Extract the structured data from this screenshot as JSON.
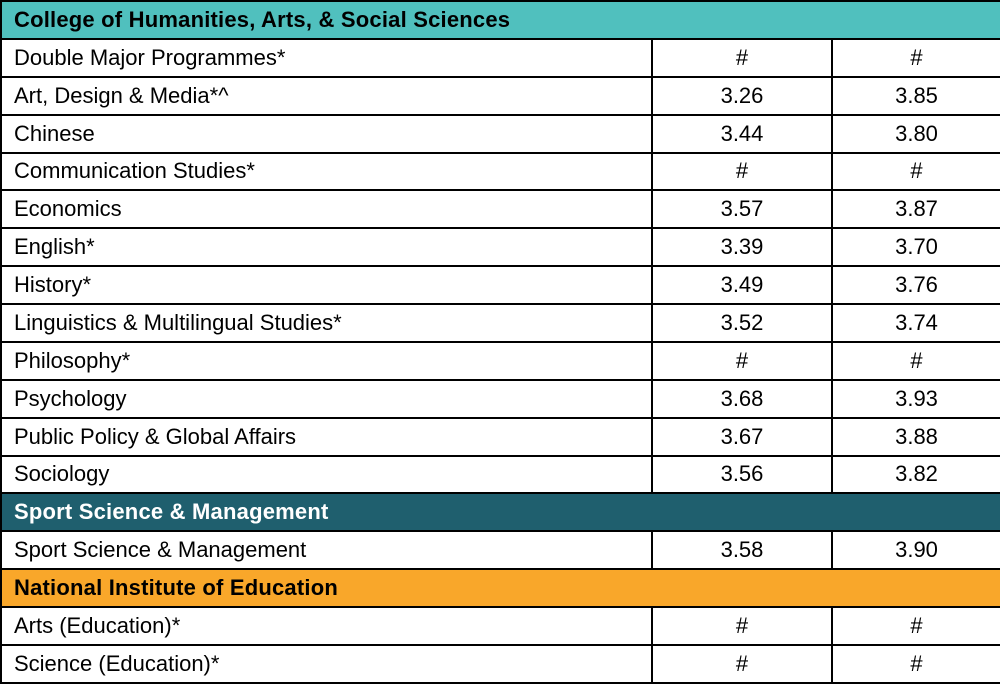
{
  "colors": {
    "teal": "#50C0BE",
    "darkteal": "#1F5F6E",
    "orange": "#F9A72A"
  },
  "table": {
    "sections": [
      {
        "title": "College of Humanities, Arts, & Social Sciences",
        "rows": [
          {
            "name": "Double Major Programmes*",
            "v1": "#",
            "v2": "#"
          },
          {
            "name": "Art, Design & Media*^",
            "v1": "3.26",
            "v2": "3.85"
          },
          {
            "name": "Chinese",
            "v1": "3.44",
            "v2": "3.80"
          },
          {
            "name": "Communication Studies*",
            "v1": "#",
            "v2": "#"
          },
          {
            "name": "Economics",
            "v1": "3.57",
            "v2": "3.87"
          },
          {
            "name": "English*",
            "v1": "3.39",
            "v2": "3.70"
          },
          {
            "name": "History*",
            "v1": "3.49",
            "v2": "3.76"
          },
          {
            "name": "Linguistics & Multilingual Studies*",
            "v1": "3.52",
            "v2": "3.74"
          },
          {
            "name": "Philosophy*",
            "v1": "#",
            "v2": "#"
          },
          {
            "name": "Psychology",
            "v1": "3.68",
            "v2": "3.93"
          },
          {
            "name": "Public Policy & Global Affairs",
            "v1": "3.67",
            "v2": "3.88"
          },
          {
            "name": "Sociology",
            "v1": "3.56",
            "v2": "3.82"
          }
        ]
      },
      {
        "title": "Sport Science & Management",
        "rows": [
          {
            "name": "Sport Science & Management",
            "v1": "3.58",
            "v2": "3.90"
          }
        ]
      },
      {
        "title": "National Institute of Education",
        "rows": [
          {
            "name": "Arts (Education)*",
            "v1": "#",
            "v2": "#"
          },
          {
            "name": "Science (Education)*",
            "v1": "#",
            "v2": "#"
          }
        ]
      }
    ]
  }
}
